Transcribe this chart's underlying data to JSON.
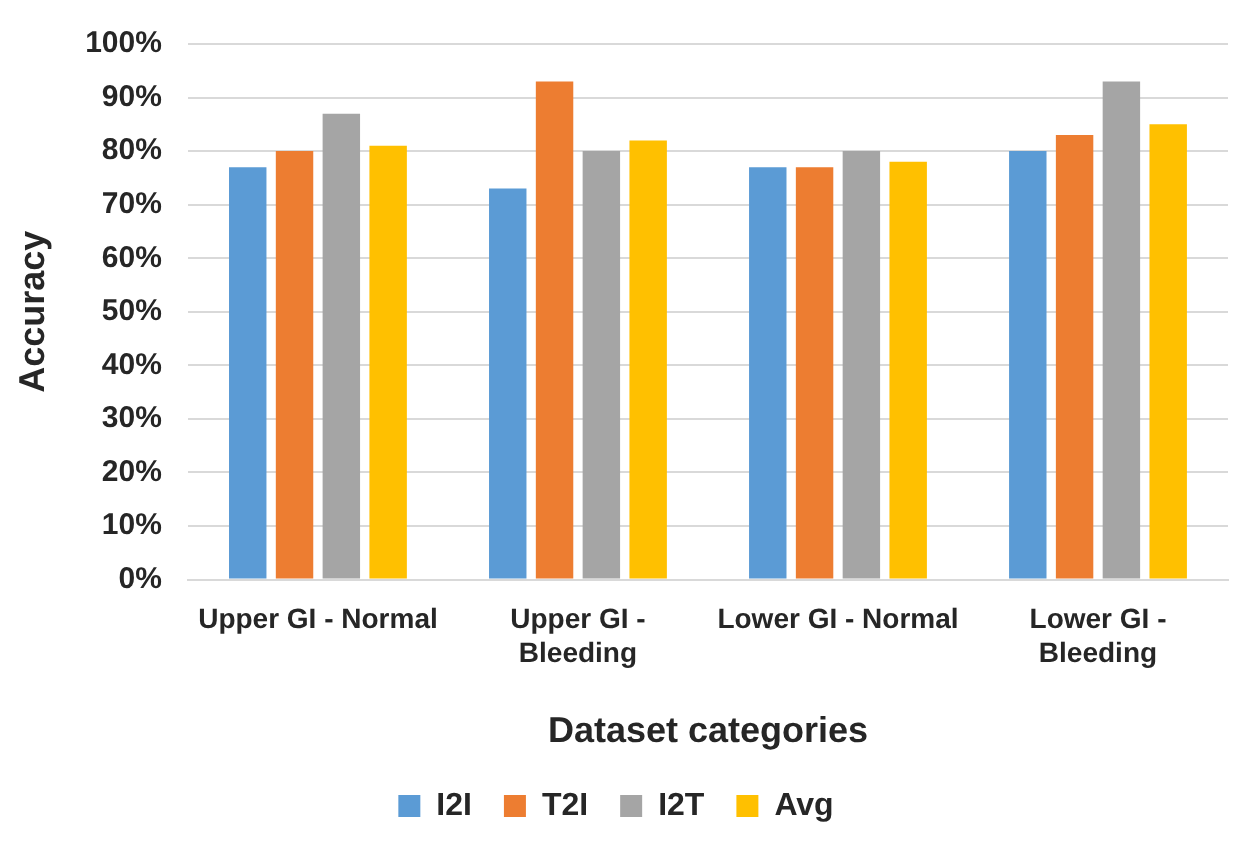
{
  "chart_data": {
    "type": "bar",
    "xlabel": "Dataset categories",
    "ylabel": "Accuracy",
    "categories": [
      "Upper GI - Normal",
      "Upper GI - Bleeding",
      "Lower GI - Normal",
      "Lower GI - Bleeding"
    ],
    "series": [
      {
        "name": "I2I",
        "color": "#5b9bd5",
        "values": [
          77,
          73,
          77,
          80
        ]
      },
      {
        "name": "T2I",
        "color": "#ed7d31",
        "values": [
          80,
          93,
          77,
          83
        ]
      },
      {
        "name": "I2T",
        "color": "#a5a5a5",
        "values": [
          87,
          80,
          80,
          93
        ]
      },
      {
        "name": "Avg",
        "color": "#ffc000",
        "values": [
          81,
          82,
          78,
          85
        ]
      }
    ],
    "ylim": [
      0,
      100
    ],
    "yticks": [
      {
        "value": 0,
        "label": "0%"
      },
      {
        "value": 10,
        "label": "10%"
      },
      {
        "value": 20,
        "label": "20%"
      },
      {
        "value": 30,
        "label": "30%"
      },
      {
        "value": 40,
        "label": "40%"
      },
      {
        "value": 50,
        "label": "50%"
      },
      {
        "value": 60,
        "label": "60%"
      },
      {
        "value": 70,
        "label": "70%"
      },
      {
        "value": 80,
        "label": "80%"
      },
      {
        "value": 90,
        "label": "90%"
      },
      {
        "value": 100,
        "label": "100%"
      }
    ],
    "grid": "y",
    "legend": "bottom"
  }
}
